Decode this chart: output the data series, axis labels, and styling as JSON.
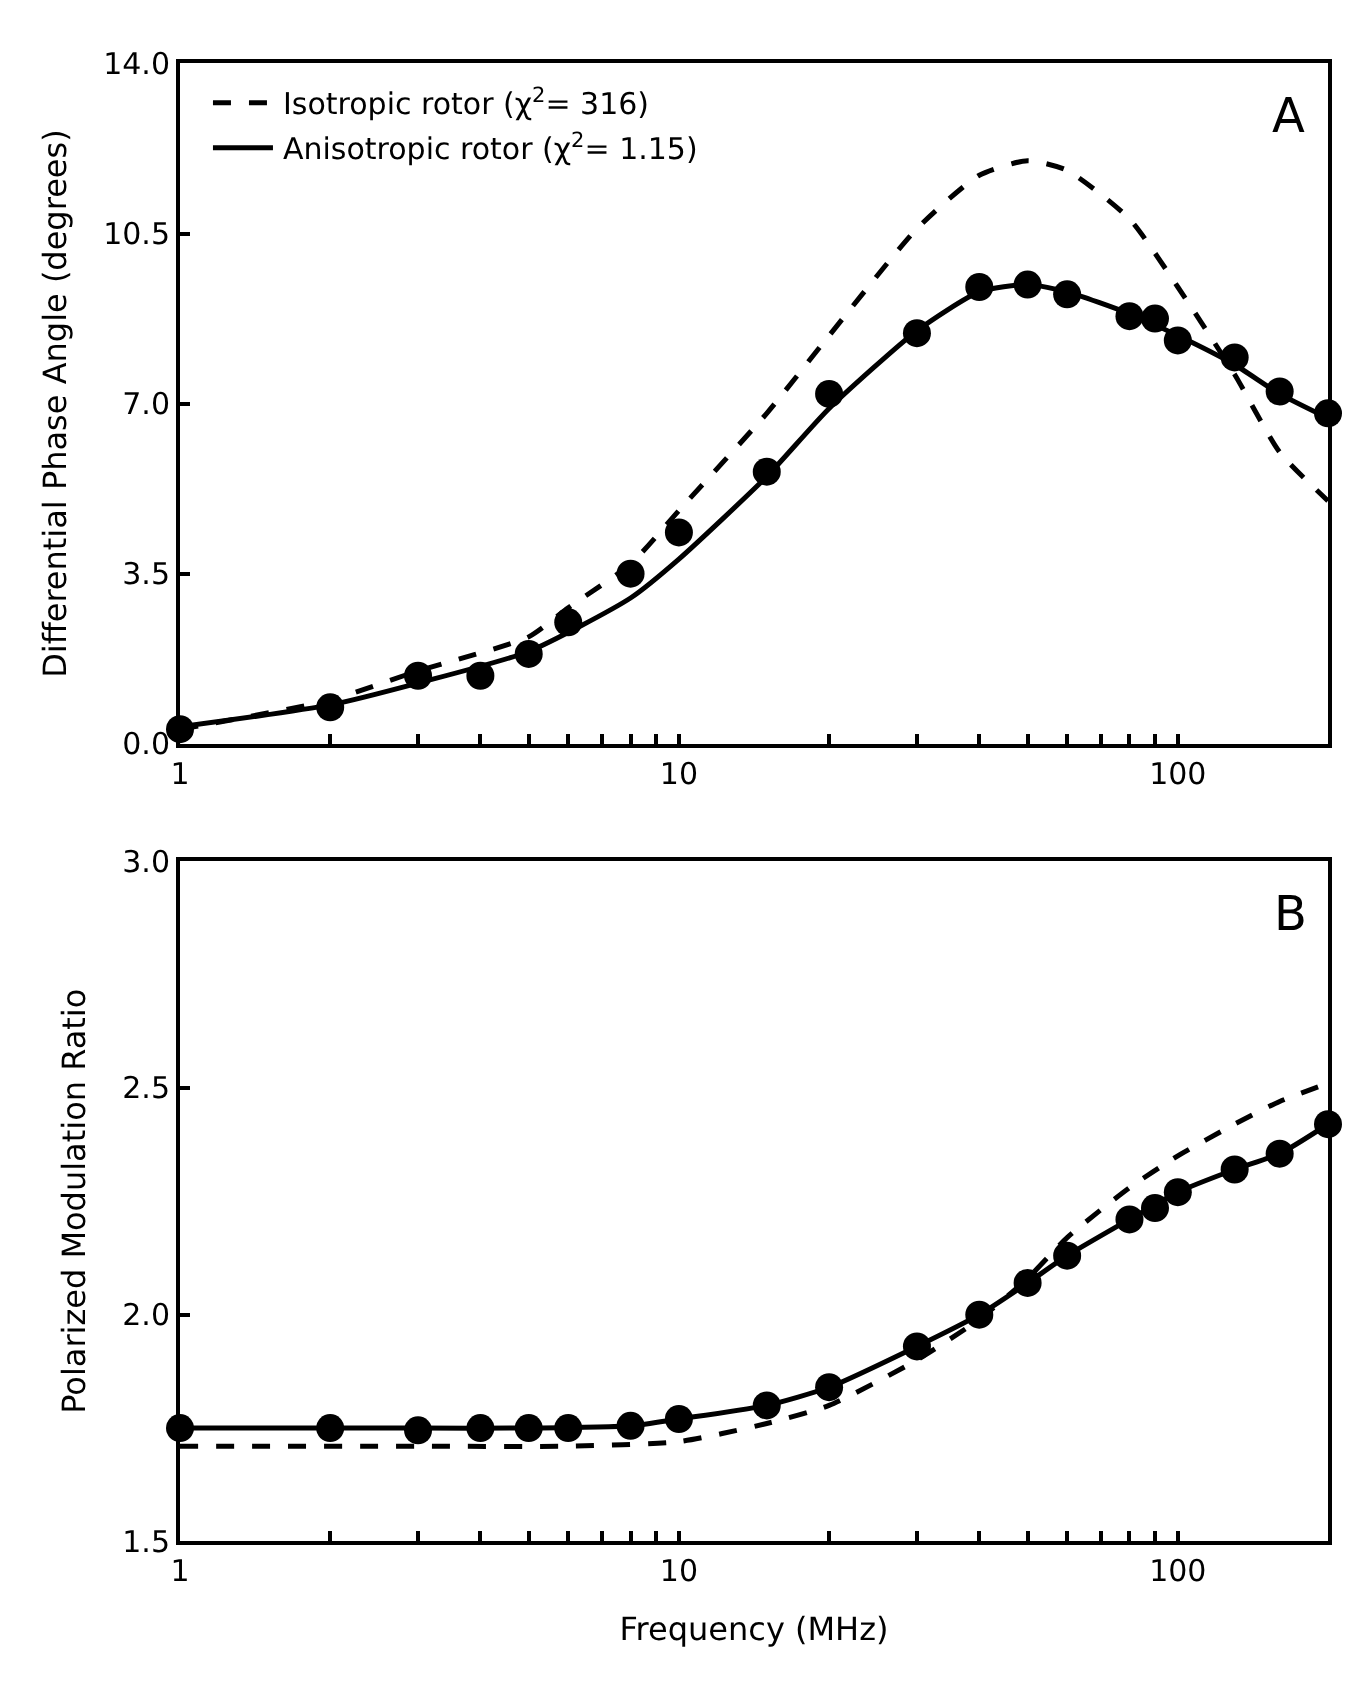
{
  "chart_data": [
    {
      "type": "line",
      "log": "x",
      "grid": false,
      "legend": "top left",
      "tick_labels": "xy",
      "ylabel": "Differential Phase Angle (degrees)",
      "annotations": [
        "A"
      ],
      "xlim": [
        1,
        200
      ],
      "xticks": [
        1,
        {
          "value": 2,
          "label": null
        },
        {
          "value": 3,
          "label": null
        },
        {
          "value": 4,
          "label": null
        },
        {
          "value": 5,
          "label": null
        },
        {
          "value": 6,
          "label": null
        },
        {
          "value": 7,
          "label": null
        },
        {
          "value": 8,
          "label": null
        },
        {
          "value": 9,
          "label": null
        },
        10,
        {
          "value": 20,
          "label": null
        },
        {
          "value": 30,
          "label": null
        },
        {
          "value": 40,
          "label": null
        },
        {
          "value": 50,
          "label": null
        },
        {
          "value": 60,
          "label": null
        },
        {
          "value": 70,
          "label": null
        },
        {
          "value": 80,
          "label": null
        },
        {
          "value": 90,
          "label": null
        },
        100
      ],
      "ylim": [
        0,
        14
      ],
      "yticks": [
        {
          "value": 0,
          "label": "0.0"
        },
        {
          "value": 3.5,
          "label": "3.5"
        },
        {
          "value": 7,
          "label": "7.0"
        },
        {
          "value": 10.5,
          "label": "10.5"
        },
        {
          "value": 14,
          "label": "14.0"
        }
      ],
      "series": [
        {
          "name": "Isotropic rotor (χ$^{2}$= 316)",
          "line_style": "dashed",
          "marker": "none",
          "color": "#000000",
          "x": [
            1,
            2,
            3,
            5,
            6,
            8,
            10,
            15,
            20,
            30,
            40,
            50,
            60,
            80,
            100,
            130,
            160,
            200
          ],
          "values": [
            0.3,
            0.9,
            1.5,
            2.2,
            2.8,
            3.7,
            4.8,
            6.8,
            8.4,
            10.6,
            11.7,
            12.0,
            11.8,
            10.8,
            9.4,
            7.6,
            6.0,
            5.0
          ]
        },
        {
          "name": "Anisotropic rotor (χ$^{2}$= 1.15)",
          "line_style": "solid",
          "marker": "none",
          "color": "#000000",
          "x": [
            1,
            2,
            3,
            5,
            8,
            10,
            15,
            20,
            30,
            40,
            50,
            60,
            80,
            100,
            130,
            160,
            200
          ],
          "values": [
            0.35,
            0.8,
            1.25,
            1.9,
            3.0,
            3.8,
            5.5,
            6.9,
            8.5,
            9.3,
            9.45,
            9.3,
            8.85,
            8.4,
            7.8,
            7.2,
            6.7
          ]
        },
        {
          "type": "scatter",
          "marker": "circle",
          "color": "#000000",
          "x": [
            1,
            2,
            3,
            4,
            5,
            6,
            8,
            10,
            15,
            20,
            30,
            40,
            50,
            60,
            80,
            90,
            100,
            130,
            160,
            200
          ],
          "values": [
            0.3,
            0.75,
            1.4,
            1.4,
            1.85,
            2.5,
            3.5,
            4.35,
            5.6,
            7.2,
            8.45,
            9.4,
            9.45,
            9.25,
            8.8,
            8.75,
            8.3,
            7.95,
            7.25,
            6.8
          ]
        }
      ]
    },
    {
      "type": "line",
      "log": "x",
      "grid": false,
      "legend": false,
      "xlabel": "Frequency (MHz)",
      "ylabel": "Polarized Modulation Ratio",
      "annotations": [
        "B"
      ],
      "xlim": [
        1,
        200
      ],
      "xticks": [
        1,
        {
          "value": 2,
          "label": null
        },
        {
          "value": 3,
          "label": null
        },
        {
          "value": 4,
          "label": null
        },
        {
          "value": 5,
          "label": null
        },
        {
          "value": 6,
          "label": null
        },
        {
          "value": 7,
          "label": null
        },
        {
          "value": 8,
          "label": null
        },
        {
          "value": 9,
          "label": null
        },
        10,
        {
          "value": 20,
          "label": null
        },
        {
          "value": 30,
          "label": null
        },
        {
          "value": 40,
          "label": null
        },
        {
          "value": 50,
          "label": null
        },
        {
          "value": 60,
          "label": null
        },
        {
          "value": 70,
          "label": null
        },
        {
          "value": 80,
          "label": null
        },
        {
          "value": 90,
          "label": null
        },
        100
      ],
      "ylim": [
        1.5,
        3.0
      ],
      "yticks": [
        {
          "value": 1.5,
          "label": "1.5"
        },
        {
          "value": 2,
          "label": "2.0"
        },
        {
          "value": 2.5,
          "label": "2.5"
        },
        {
          "value": 3,
          "label": "3.0"
        }
      ],
      "series": [
        {
          "line_style": "dashed",
          "marker": "none",
          "color": "#000000",
          "x": [
            1,
            3,
            6,
            10,
            15,
            20,
            30,
            40,
            50,
            60,
            80,
            100,
            130,
            160,
            200
          ],
          "values": [
            1.71,
            1.71,
            1.71,
            1.72,
            1.76,
            1.8,
            1.9,
            1.99,
            2.08,
            2.17,
            2.28,
            2.35,
            2.42,
            2.47,
            2.51
          ]
        },
        {
          "line_style": "solid",
          "marker": "none",
          "color": "#000000",
          "x": [
            1,
            2,
            3,
            5,
            8,
            10,
            15,
            20,
            30,
            40,
            50,
            60,
            80,
            100,
            130,
            160,
            200
          ],
          "values": [
            1.75,
            1.75,
            1.75,
            1.75,
            1.755,
            1.77,
            1.8,
            1.84,
            1.93,
            2.0,
            2.07,
            2.13,
            2.21,
            2.27,
            2.32,
            2.355,
            2.42
          ]
        },
        {
          "type": "scatter",
          "marker": "circle",
          "color": "#000000",
          "x": [
            1,
            2,
            3,
            4,
            5,
            6,
            8,
            10,
            15,
            20,
            30,
            40,
            50,
            60,
            80,
            90,
            100,
            130,
            160,
            200
          ],
          "values": [
            1.75,
            1.75,
            1.745,
            1.75,
            1.75,
            1.75,
            1.755,
            1.77,
            1.8,
            1.84,
            1.93,
            2.0,
            2.07,
            2.13,
            2.21,
            2.235,
            2.27,
            2.32,
            2.355,
            2.42
          ]
        }
      ]
    }
  ]
}
